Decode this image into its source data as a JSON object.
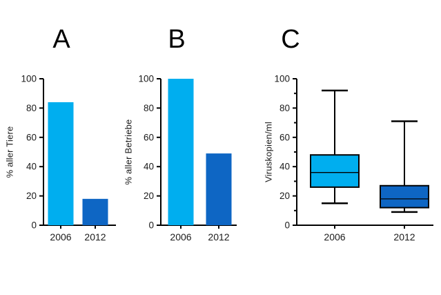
{
  "figure": {
    "background": "#ffffff",
    "axis_color": "#000000",
    "series_colors": {
      "y2006": "#00AEEF",
      "y2012": "#0E66C4"
    }
  },
  "chart_data": [
    {
      "type": "bar",
      "title": "A",
      "ylabel": "% aller Tiere",
      "xlabel": "",
      "categories": [
        "2006",
        "2012"
      ],
      "values": [
        84,
        18
      ],
      "bar_colors": [
        "#00AEEF",
        "#0E66C4"
      ],
      "ylim": [
        0,
        100
      ],
      "yticks": [
        0,
        20,
        40,
        60,
        80,
        100
      ],
      "grid": false,
      "legend": "none"
    },
    {
      "type": "bar",
      "title": "B",
      "ylabel": "% aller Betriebe",
      "xlabel": "",
      "categories": [
        "2006",
        "2012"
      ],
      "values": [
        100,
        49
      ],
      "bar_colors": [
        "#00AEEF",
        "#0E66C4"
      ],
      "ylim": [
        0,
        100
      ],
      "yticks": [
        0,
        20,
        40,
        60,
        80,
        100
      ],
      "grid": false,
      "legend": "none"
    },
    {
      "type": "box",
      "title": "C",
      "ylabel": "Viruskopien/ml",
      "xlabel": "",
      "categories": [
        "2006",
        "2012"
      ],
      "series": [
        {
          "name": "2006",
          "min": 15,
          "q1": 26,
          "median": 36,
          "q3": 48,
          "max": 92,
          "color": "#00AEEF"
        },
        {
          "name": "2012",
          "min": 9,
          "q1": 12,
          "median": 18,
          "q3": 27,
          "max": 71,
          "color": "#0E66C4"
        }
      ],
      "ylim": [
        0,
        100
      ],
      "yticks": [
        0,
        20,
        40,
        60,
        80,
        100
      ],
      "minor_yticks": [
        10,
        30,
        50,
        70,
        90
      ],
      "grid": false,
      "legend": "none"
    }
  ]
}
